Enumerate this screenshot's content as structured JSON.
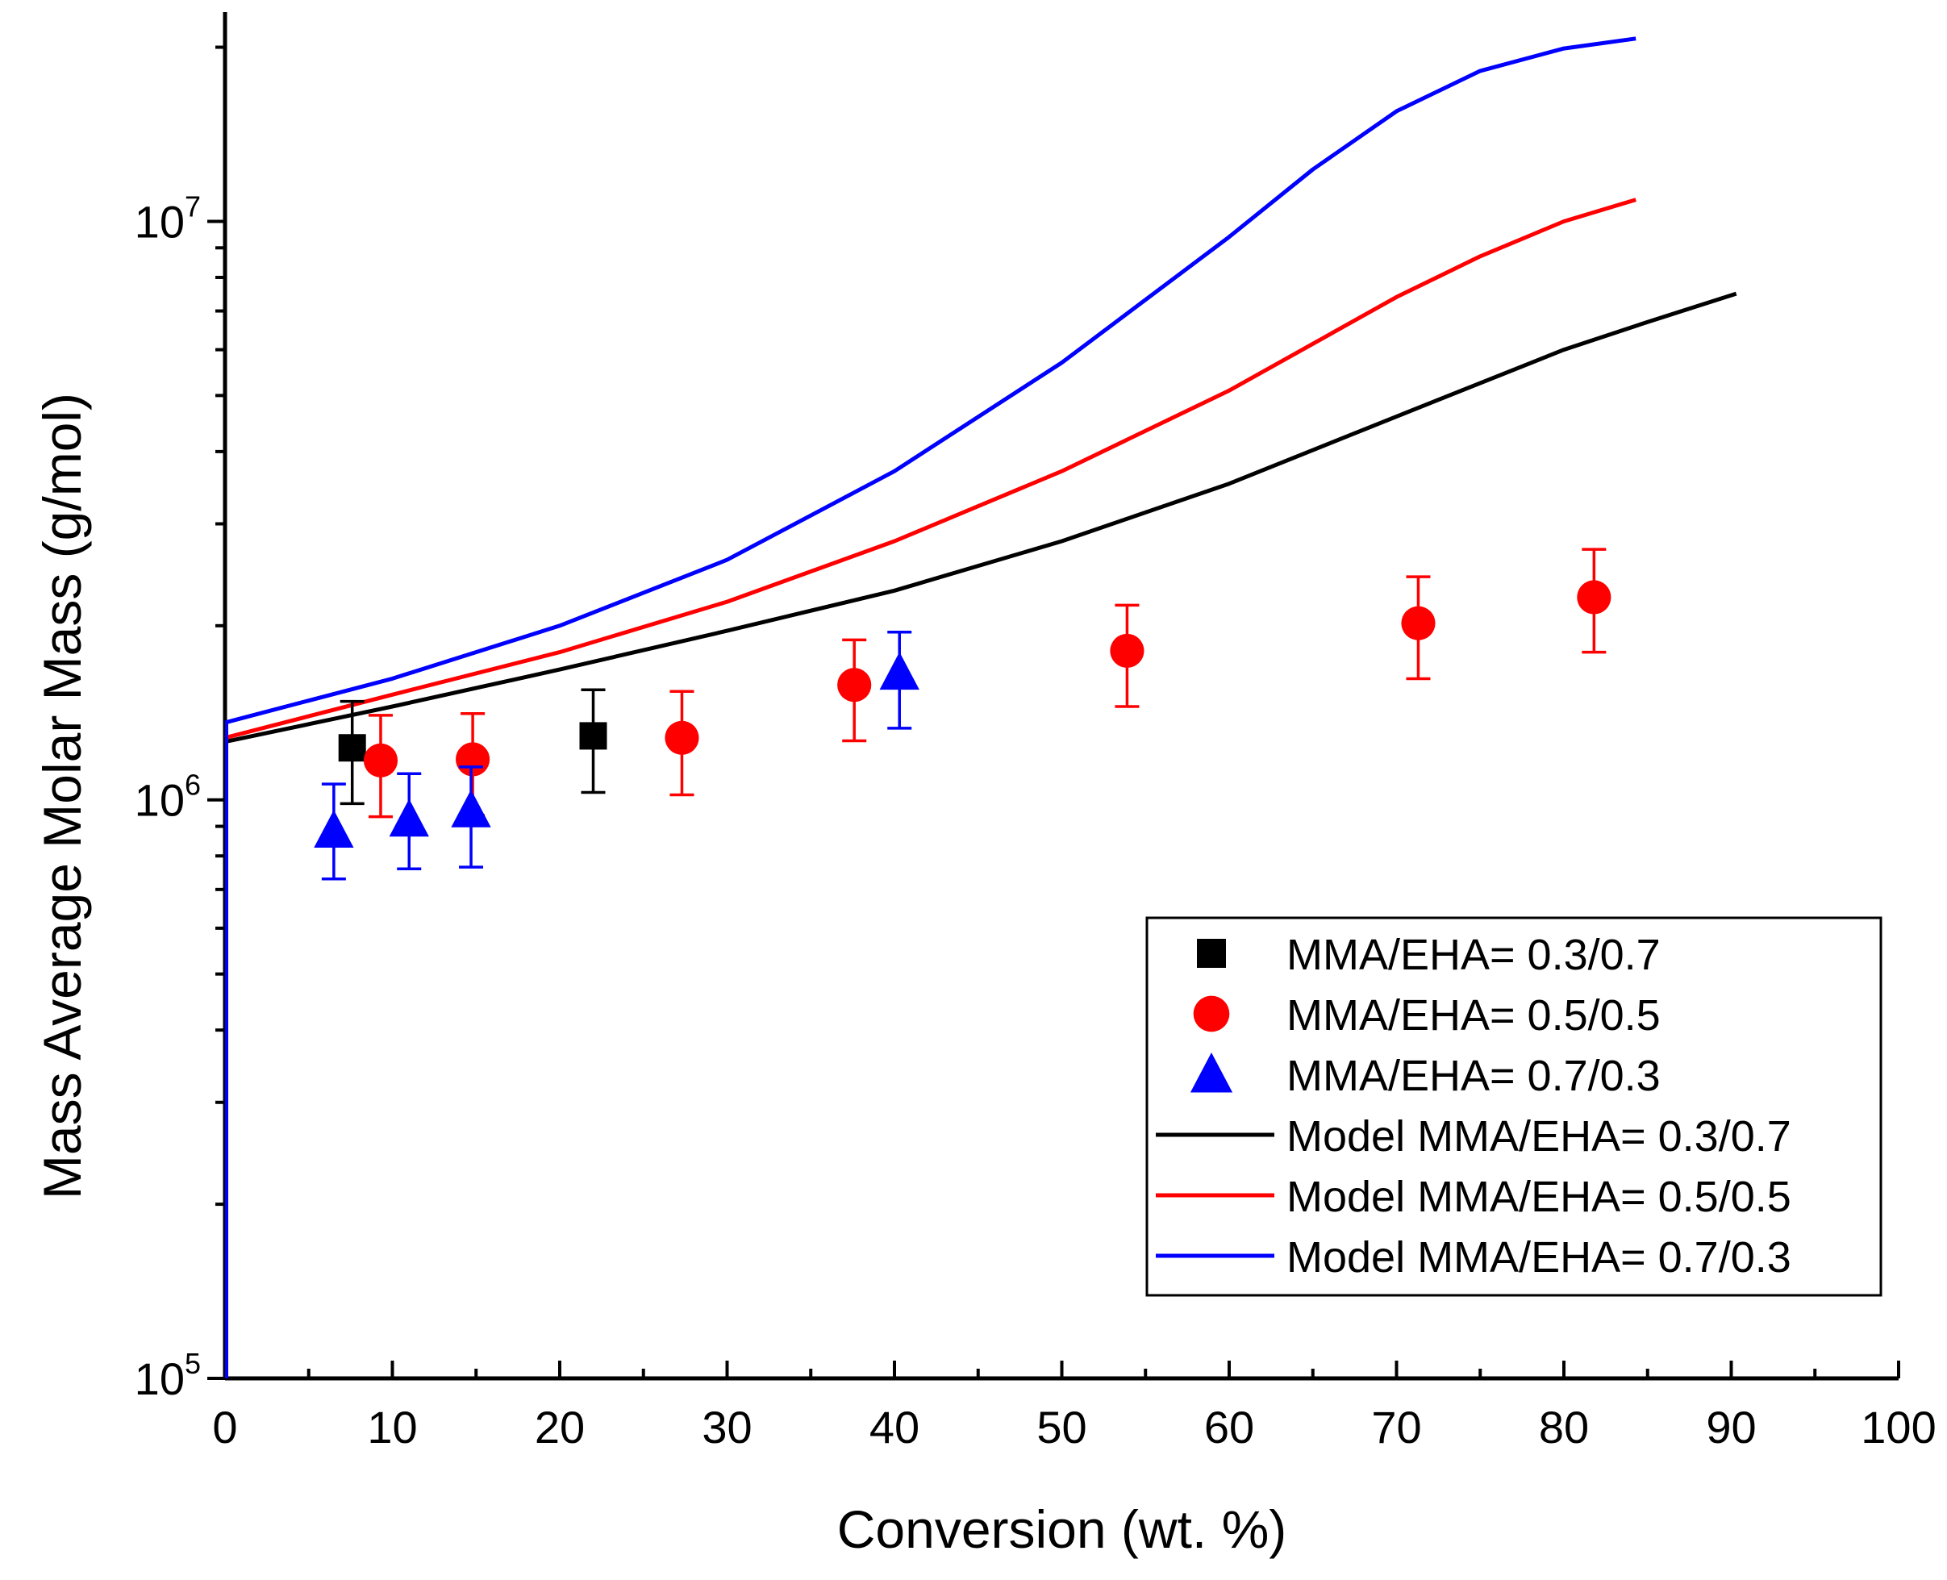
{
  "chart_data": {
    "type": "scatter",
    "title": "",
    "xlabel": "Conversion (wt. %)",
    "ylabel": "Mass Average Molar Mass (g/mol)",
    "xlim": [
      0,
      100
    ],
    "ylim": [
      100000,
      23000000
    ],
    "yscale": "log",
    "grid": false,
    "legend_position": "bottom-right",
    "x_ticks": [
      "0",
      "10",
      "20",
      "30",
      "40",
      "50",
      "60",
      "70",
      "80",
      "90",
      "100"
    ],
    "y_ticks": [
      {
        "base": "10",
        "exp": "5"
      },
      {
        "base": "10",
        "exp": "6"
      },
      {
        "base": "10",
        "exp": "7"
      }
    ],
    "series": [
      {
        "name": "MMA/EHA= 0.3/0.7",
        "kind": "points",
        "marker": "square",
        "color": "#000000",
        "points": [
          {
            "x": 7.6,
            "y": 1230000,
            "lo": 985000,
            "hi": 1480000
          },
          {
            "x": 22.0,
            "y": 1290000,
            "lo": 1030000,
            "hi": 1550000
          }
        ]
      },
      {
        "name": "MMA/EHA= 0.5/0.5",
        "kind": "points",
        "marker": "circle",
        "color": "#ff0000",
        "points": [
          {
            "x": 9.3,
            "y": 1170000,
            "lo": 935000,
            "hi": 1400000
          },
          {
            "x": 14.8,
            "y": 1175000,
            "lo": 940000,
            "hi": 1410000
          },
          {
            "x": 27.3,
            "y": 1280000,
            "lo": 1020000,
            "hi": 1540000
          },
          {
            "x": 37.6,
            "y": 1580000,
            "lo": 1265000,
            "hi": 1890000
          },
          {
            "x": 53.9,
            "y": 1810000,
            "lo": 1450000,
            "hi": 2170000
          },
          {
            "x": 71.3,
            "y": 2020000,
            "lo": 1620000,
            "hi": 2430000
          },
          {
            "x": 81.8,
            "y": 2240000,
            "lo": 1800000,
            "hi": 2710000
          }
        ]
      },
      {
        "name": "MMA/EHA= 0.7/0.3",
        "kind": "points",
        "marker": "triangle",
        "color": "#0000ff",
        "points": [
          {
            "x": 6.5,
            "y": 885000,
            "lo": 730000,
            "hi": 1065000
          },
          {
            "x": 11.0,
            "y": 925000,
            "lo": 760000,
            "hi": 1110000
          },
          {
            "x": 14.7,
            "y": 960000,
            "lo": 765000,
            "hi": 1140000
          },
          {
            "x": 40.3,
            "y": 1660000,
            "lo": 1330000,
            "hi": 1950000
          }
        ]
      },
      {
        "name": "Model MMA/EHA= 0.3/0.7",
        "kind": "line",
        "color": "#000000",
        "x": [
          0,
          10,
          20,
          30,
          40,
          50,
          60,
          70,
          80,
          85,
          90.3
        ],
        "y": [
          1260000,
          1450000,
          1680000,
          1960000,
          2300000,
          2800000,
          3520000,
          4600000,
          6000000,
          6700000,
          7500000
        ]
      },
      {
        "name": "Model MMA/EHA= 0.5/0.5",
        "kind": "line",
        "color": "#ff0000",
        "x": [
          0,
          10,
          20,
          30,
          40,
          50,
          60,
          70,
          75,
          80,
          84.3
        ],
        "y": [
          1280000,
          1520000,
          1800000,
          2200000,
          2800000,
          3700000,
          5100000,
          7400000,
          8700000,
          10000000,
          10900000
        ]
      },
      {
        "name": "Model MMA/EHA= 0.7/0.3",
        "kind": "line",
        "color": "#0000ff",
        "x": [
          0,
          10,
          20,
          30,
          40,
          50,
          60,
          65,
          70,
          75,
          80,
          84.3
        ],
        "y": [
          1360000,
          1620000,
          2000000,
          2600000,
          3700000,
          5700000,
          9400000,
          12300000,
          15500000,
          18200000,
          19900000,
          20700000
        ]
      }
    ]
  }
}
